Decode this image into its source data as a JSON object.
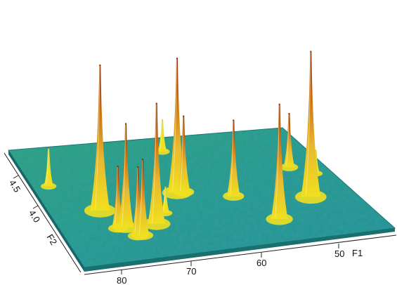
{
  "chart_data": {
    "type": "surface3d",
    "title": "",
    "x_axis": {
      "label": "F1",
      "ticks": [
        "80",
        "70",
        "60",
        "50"
      ]
    },
    "y_axis": {
      "label": "F2",
      "ticks": [
        "4.5",
        "4.0"
      ]
    },
    "z_axis": {
      "label": "",
      "ticks": []
    },
    "peaks": [
      {
        "f1": 87.5,
        "f2": 4.55,
        "h": 0.22
      },
      {
        "f1": 82.5,
        "f2": 4.25,
        "h": 1.0
      },
      {
        "f1": 81.8,
        "f2": 4.05,
        "h": 0.4
      },
      {
        "f1": 80.6,
        "f2": 4.05,
        "h": 0.7
      },
      {
        "f1": 79.8,
        "f2": 3.95,
        "h": 0.45
      },
      {
        "f1": 79.1,
        "f2": 3.95,
        "h": 0.5
      },
      {
        "f1": 76.0,
        "f2": 4.05,
        "h": 0.82
      },
      {
        "f1": 69.6,
        "f2": 4.35,
        "h": 0.92
      },
      {
        "f1": 68.6,
        "f2": 4.35,
        "h": 0.5
      },
      {
        "f1": 66.6,
        "f2": 4.8,
        "h": 0.18
      },
      {
        "f1": 62.1,
        "f2": 4.25,
        "h": 0.5
      },
      {
        "f1": 58.8,
        "f2": 3.95,
        "h": 0.78
      },
      {
        "f1": 51.6,
        "f2": 4.15,
        "h": 1.0
      },
      {
        "f1": 50.3,
        "f2": 4.5,
        "h": 0.34
      },
      {
        "f1": 47.5,
        "f2": 4.4,
        "h": 0.12
      },
      {
        "f1": 73.6,
        "f2": 4.15,
        "h": 0.14
      }
    ],
    "colors": {
      "low": "#1f8f9a",
      "mid": "#3fbf5a",
      "high": "#f0e020",
      "peak": "#c86a10",
      "tip": "#8a2a06"
    },
    "grid": false,
    "legend": "none"
  }
}
